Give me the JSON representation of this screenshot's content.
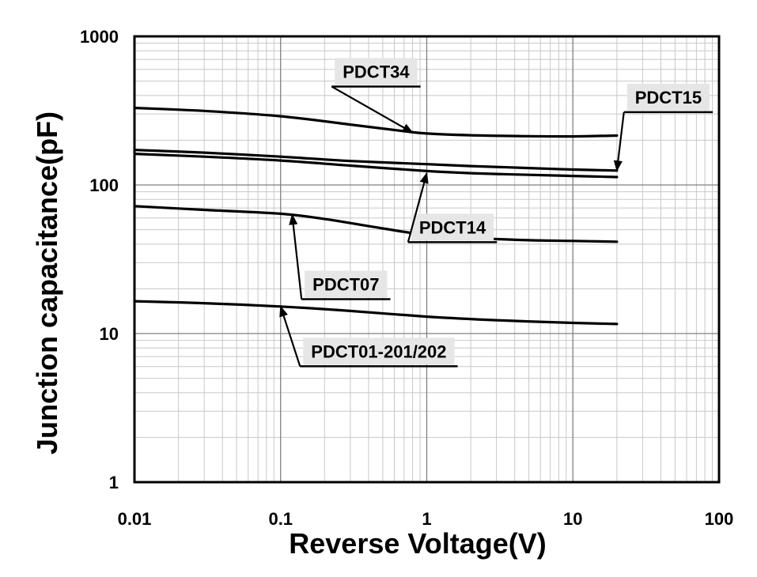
{
  "chart_data": {
    "type": "line",
    "xlabel": "Reverse Voltage(V)",
    "ylabel": "Junction capacitance(pF)",
    "x_scale": "log",
    "y_scale": "log",
    "xlim": [
      0.01,
      100
    ],
    "ylim": [
      1,
      1000
    ],
    "grid": true,
    "x_ticks": [
      "0.01",
      "0.1",
      "1",
      "10",
      "100"
    ],
    "y_ticks": [
      "1",
      "10",
      "100",
      "1000"
    ],
    "series": [
      {
        "name": "PDCT34",
        "x": [
          0.01,
          0.03,
          0.1,
          0.3,
          0.7,
          1,
          2,
          5,
          10,
          20
        ],
        "y": [
          330,
          315,
          290,
          255,
          230,
          222,
          216,
          213,
          212,
          215
        ]
      },
      {
        "name": "PDCT15",
        "x": [
          0.01,
          0.03,
          0.1,
          0.3,
          1,
          2,
          5,
          10,
          20
        ],
        "y": [
          172,
          165,
          155,
          145,
          138,
          134,
          130,
          127,
          125
        ]
      },
      {
        "name": "PDCT14",
        "x": [
          0.01,
          0.03,
          0.1,
          0.3,
          1,
          2,
          5,
          10,
          20
        ],
        "y": [
          162,
          155,
          146,
          135,
          124,
          120,
          117,
          115,
          113
        ]
      },
      {
        "name": "PDCT07",
        "x": [
          0.01,
          0.03,
          0.1,
          0.2,
          0.5,
          1,
          2,
          5,
          10,
          20
        ],
        "y": [
          72,
          68,
          64,
          59,
          51,
          46,
          44,
          42.5,
          42,
          41.5
        ]
      },
      {
        "name": "PDCT01-201/202",
        "x": [
          0.01,
          0.03,
          0.1,
          0.3,
          1,
          3,
          10,
          20
        ],
        "y": [
          16.5,
          16,
          15.2,
          14.2,
          13,
          12.3,
          11.8,
          11.6
        ]
      }
    ],
    "annotations": [
      {
        "text": "PDCT34",
        "label_x": 0.45,
        "label_y": 580,
        "arrow_x": 0.8,
        "arrow_y": 225
      },
      {
        "text": "PDCT15",
        "label_x": 45,
        "label_y": 390,
        "arrow_x": 20,
        "arrow_y": 125
      },
      {
        "text": "PDCT14",
        "label_x": 1.5,
        "label_y": 52,
        "arrow_x": 1.0,
        "arrow_y": 120
      },
      {
        "text": "PDCT07",
        "label_x": 0.28,
        "label_y": 21.5,
        "arrow_x": 0.12,
        "arrow_y": 63
      },
      {
        "text": "PDCT01-201/202",
        "label_x": 0.47,
        "label_y": 7.6,
        "arrow_x": 0.1,
        "arrow_y": 15.2
      }
    ]
  }
}
